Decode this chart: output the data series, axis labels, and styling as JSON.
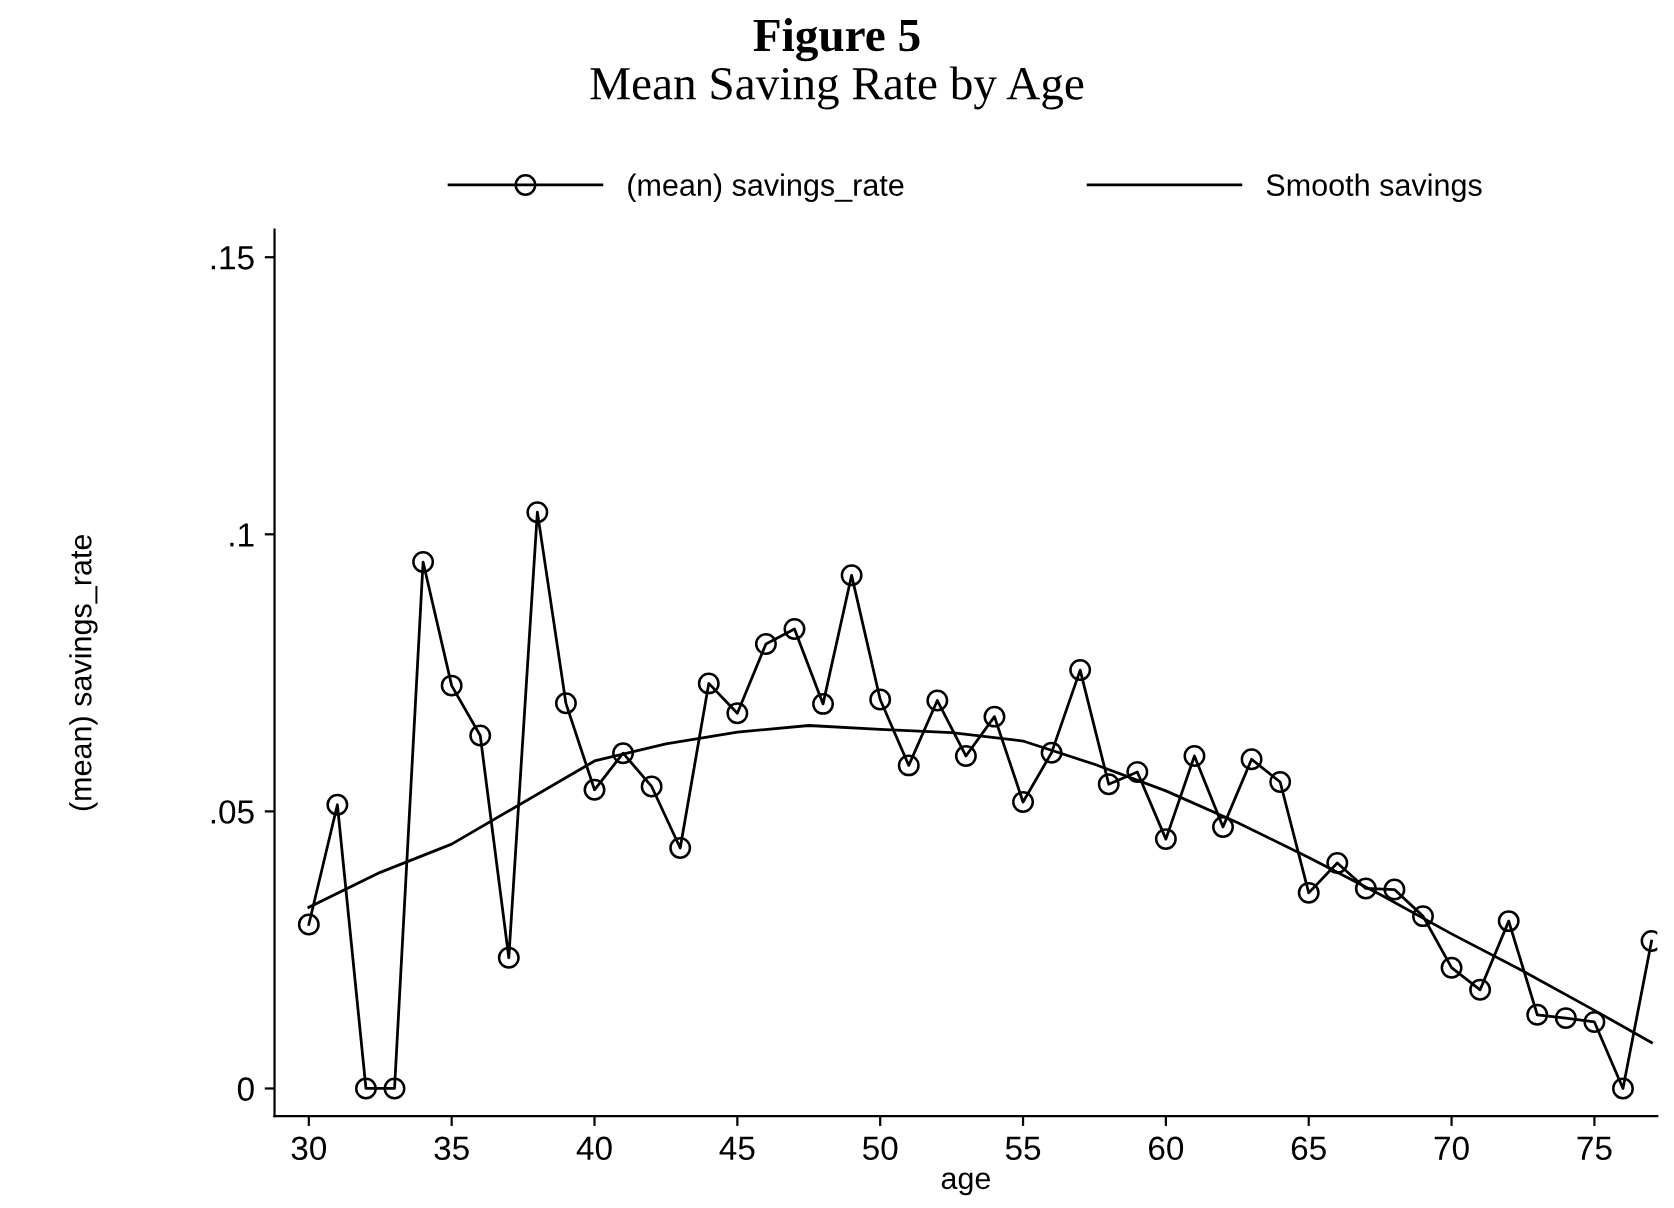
{
  "chart_data": {
    "type": "line",
    "title": "Figure 5",
    "subtitle": "Mean Saving Rate by Age",
    "xlabel": "age",
    "ylabel": "(mean) savings_rate",
    "series": [
      {
        "name": "(mean) savings_rate",
        "color": "#000000",
        "marker": "circle",
        "x": [
          30,
          31,
          32,
          33,
          34,
          35,
          36,
          37,
          38,
          39,
          40,
          41,
          42,
          43,
          44,
          45,
          46,
          47,
          48,
          49,
          50,
          51,
          52,
          53,
          54,
          55,
          56,
          57,
          58,
          59,
          60,
          61,
          62,
          63,
          64,
          65,
          66,
          67,
          68,
          69,
          70,
          71,
          72,
          73,
          74,
          75,
          76,
          77
        ],
        "values": [
          0.0296,
          0.0512,
          0,
          0,
          0.095,
          0.0727,
          0.0637,
          0.0236,
          0.104,
          0.0695,
          0.0539,
          0.0605,
          0.0545,
          0.0434,
          0.0731,
          0.0677,
          0.0802,
          0.0829,
          0.0694,
          0.0926,
          0.0702,
          0.0583,
          0.07,
          0.06,
          0.0671,
          0.0517,
          0.0606,
          0.0755,
          0.0549,
          0.0571,
          0.045,
          0.06,
          0.0472,
          0.0594,
          0.0553,
          0.0353,
          0.0407,
          0.0361,
          0.0359,
          0.0311,
          0.0218,
          0.0178,
          0.0302,
          0.0133,
          0.0127,
          0.012,
          0,
          0.0266
        ]
      },
      {
        "name": "Smooth savings",
        "color": "#000000",
        "marker": "none",
        "x": [
          30,
          32.5,
          35,
          40,
          42.5,
          45,
          47.5,
          50,
          52.5,
          55,
          57.5,
          60,
          62.5,
          65,
          67.5,
          70,
          72.5,
          75,
          77
        ],
        "values": [
          0.0327,
          0.039,
          0.0441,
          0.0591,
          0.0622,
          0.0643,
          0.0655,
          0.0648,
          0.0642,
          0.0627,
          0.0585,
          0.0537,
          0.048,
          0.0417,
          0.035,
          0.0279,
          0.0212,
          0.0141,
          0.0083
        ]
      }
    ],
    "xlim": [
      28.8,
      77.2
    ],
    "ylim": [
      -0.005,
      0.155
    ],
    "xticks": [
      30,
      35,
      40,
      45,
      50,
      55,
      60,
      65,
      70,
      75
    ],
    "yticks": [
      0,
      {
        "value": 0.05,
        "label": ".05"
      },
      {
        "value": 0.1,
        "label": ".1"
      },
      {
        "value": 0.15,
        "label": ".15"
      }
    ],
    "grid": false,
    "legend": "top",
    "line_style": "solid"
  }
}
